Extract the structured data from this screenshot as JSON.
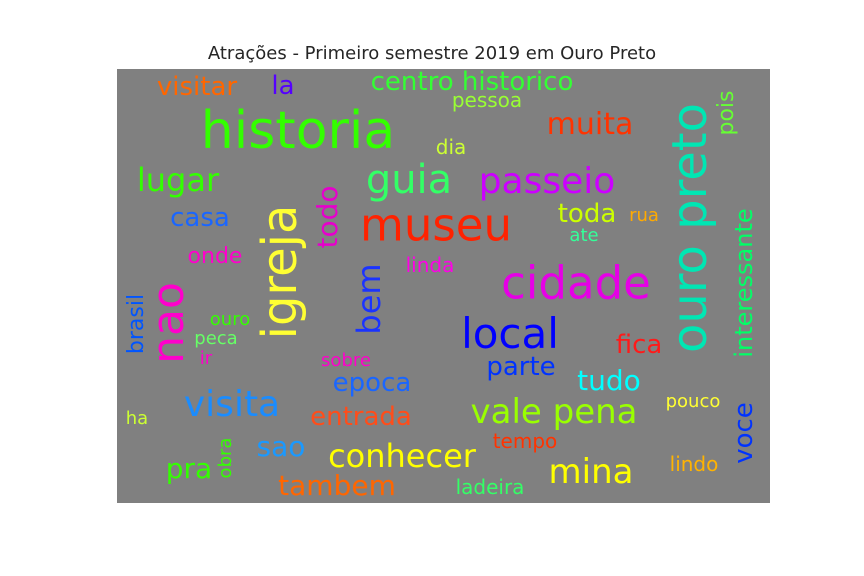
{
  "chart_data": {
    "type": "wordcloud",
    "title": "Atrações - Primeiro semestre 2019 em Ouro Preto",
    "background": "#808080",
    "words": [
      {
        "text": "historia",
        "color": "#33ff00"
      },
      {
        "text": "igreja",
        "color": "#ffff33"
      },
      {
        "text": "ouro preto",
        "color": "#00e6b3"
      },
      {
        "text": "cidade",
        "color": "#e600e6"
      },
      {
        "text": "museu",
        "color": "#ff2200"
      },
      {
        "text": "nao",
        "color": "#ff00cc"
      },
      {
        "text": "local",
        "color": "#0000ff"
      },
      {
        "text": "guia",
        "color": "#33ff66"
      },
      {
        "text": "passeio",
        "color": "#cc00ff"
      },
      {
        "text": "visita",
        "color": "#1a8cff"
      },
      {
        "text": "vale pena",
        "color": "#99ff00"
      },
      {
        "text": "conhecer",
        "color": "#ffff00"
      },
      {
        "text": "mina",
        "color": "#ffff00"
      },
      {
        "text": "bem",
        "color": "#1a33ff"
      },
      {
        "text": "muita",
        "color": "#ff3300"
      },
      {
        "text": "lugar",
        "color": "#33ff00"
      },
      {
        "text": "centro historico",
        "color": "#33ff33"
      },
      {
        "text": "todo",
        "color": "#e600cc"
      },
      {
        "text": "interessante",
        "color": "#00ff66"
      },
      {
        "text": "tudo",
        "color": "#00ffff"
      },
      {
        "text": "voce",
        "color": "#0033ff"
      },
      {
        "text": "sao",
        "color": "#1a99ff"
      },
      {
        "text": "tambem",
        "color": "#ff6600"
      },
      {
        "text": "visitar",
        "color": "#ff6600"
      },
      {
        "text": "epoca",
        "color": "#1a66ff"
      },
      {
        "text": "casa",
        "color": "#1a66ff"
      },
      {
        "text": "entrada",
        "color": "#ff4d1a"
      },
      {
        "text": "parte",
        "color": "#0033ff"
      },
      {
        "text": "fica",
        "color": "#ff1a1a"
      },
      {
        "text": "toda",
        "color": "#ccff00"
      },
      {
        "text": "pra",
        "color": "#33ff00"
      },
      {
        "text": "pessoa",
        "color": "#99ff33"
      },
      {
        "text": "la",
        "color": "#5500ff"
      },
      {
        "text": "pois",
        "color": "#66ff33"
      },
      {
        "text": "brasil",
        "color": "#0055ff"
      },
      {
        "text": "onde",
        "color": "#ff00cc"
      },
      {
        "text": "linda",
        "color": "#ff00e6"
      },
      {
        "text": "dia",
        "color": "#ccff33"
      },
      {
        "text": "ladeira",
        "color": "#33ff66"
      },
      {
        "text": "lindo",
        "color": "#ffb300"
      },
      {
        "text": "tempo",
        "color": "#ff3300"
      },
      {
        "text": "pouco",
        "color": "#ffff33"
      },
      {
        "text": "sobre",
        "color": "#ff00cc"
      },
      {
        "text": "obra",
        "color": "#33ff00"
      },
      {
        "text": "ouro",
        "color": "#33ff00"
      },
      {
        "text": "peca",
        "color": "#66ff66"
      },
      {
        "text": "ir",
        "color": "#ff00cc"
      },
      {
        "text": "rua",
        "color": "#ffaa00"
      },
      {
        "text": "ate",
        "color": "#33ff99"
      },
      {
        "text": "ha",
        "color": "#ccff33"
      }
    ]
  }
}
